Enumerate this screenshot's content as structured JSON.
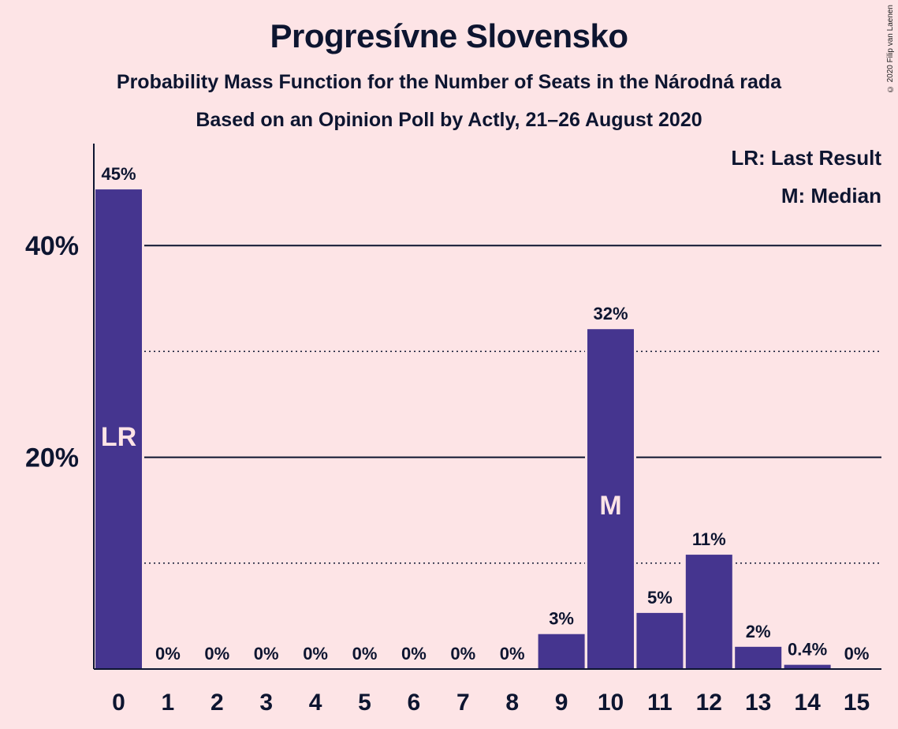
{
  "header": {
    "title": "Progresívne Slovensko",
    "subtitle1": "Probability Mass Function for the Number of Seats in the Národná rada",
    "subtitle2": "Based on an Opinion Poll by Actly, 21–26 August 2020",
    "copyright": "© 2020 Filip van Laenen"
  },
  "legend": {
    "lr": "LR: Last Result",
    "m": "M: Median"
  },
  "colors": {
    "bar": "#45358f",
    "background": "#fde4e6",
    "text": "#0d1530"
  },
  "chart_data": {
    "type": "bar",
    "title": "Progresívne Slovensko",
    "xlabel": "",
    "ylabel": "",
    "categories": [
      "0",
      "1",
      "2",
      "3",
      "4",
      "5",
      "6",
      "7",
      "8",
      "9",
      "10",
      "11",
      "12",
      "13",
      "14",
      "15"
    ],
    "values": [
      45.3,
      0,
      0,
      0,
      0,
      0,
      0,
      0,
      0,
      3.3,
      32.1,
      5.3,
      10.8,
      2.1,
      0.4,
      0
    ],
    "data_labels": [
      "45%",
      "0%",
      "0%",
      "0%",
      "0%",
      "0%",
      "0%",
      "0%",
      "0%",
      "3%",
      "32%",
      "5%",
      "11%",
      "2%",
      "0.4%",
      "0%"
    ],
    "ylim": [
      0,
      50
    ],
    "yticks": [
      20,
      40
    ],
    "ytick_labels": [
      "20%",
      "40%"
    ],
    "solid_gridlines": [
      20,
      40
    ],
    "dotted_gridlines": [
      10,
      30
    ],
    "markers": [
      {
        "category": "0",
        "text": "LR",
        "value": 22
      },
      {
        "category": "10",
        "text": "M",
        "value": 15.5
      }
    ],
    "legend_position": "top-right"
  }
}
